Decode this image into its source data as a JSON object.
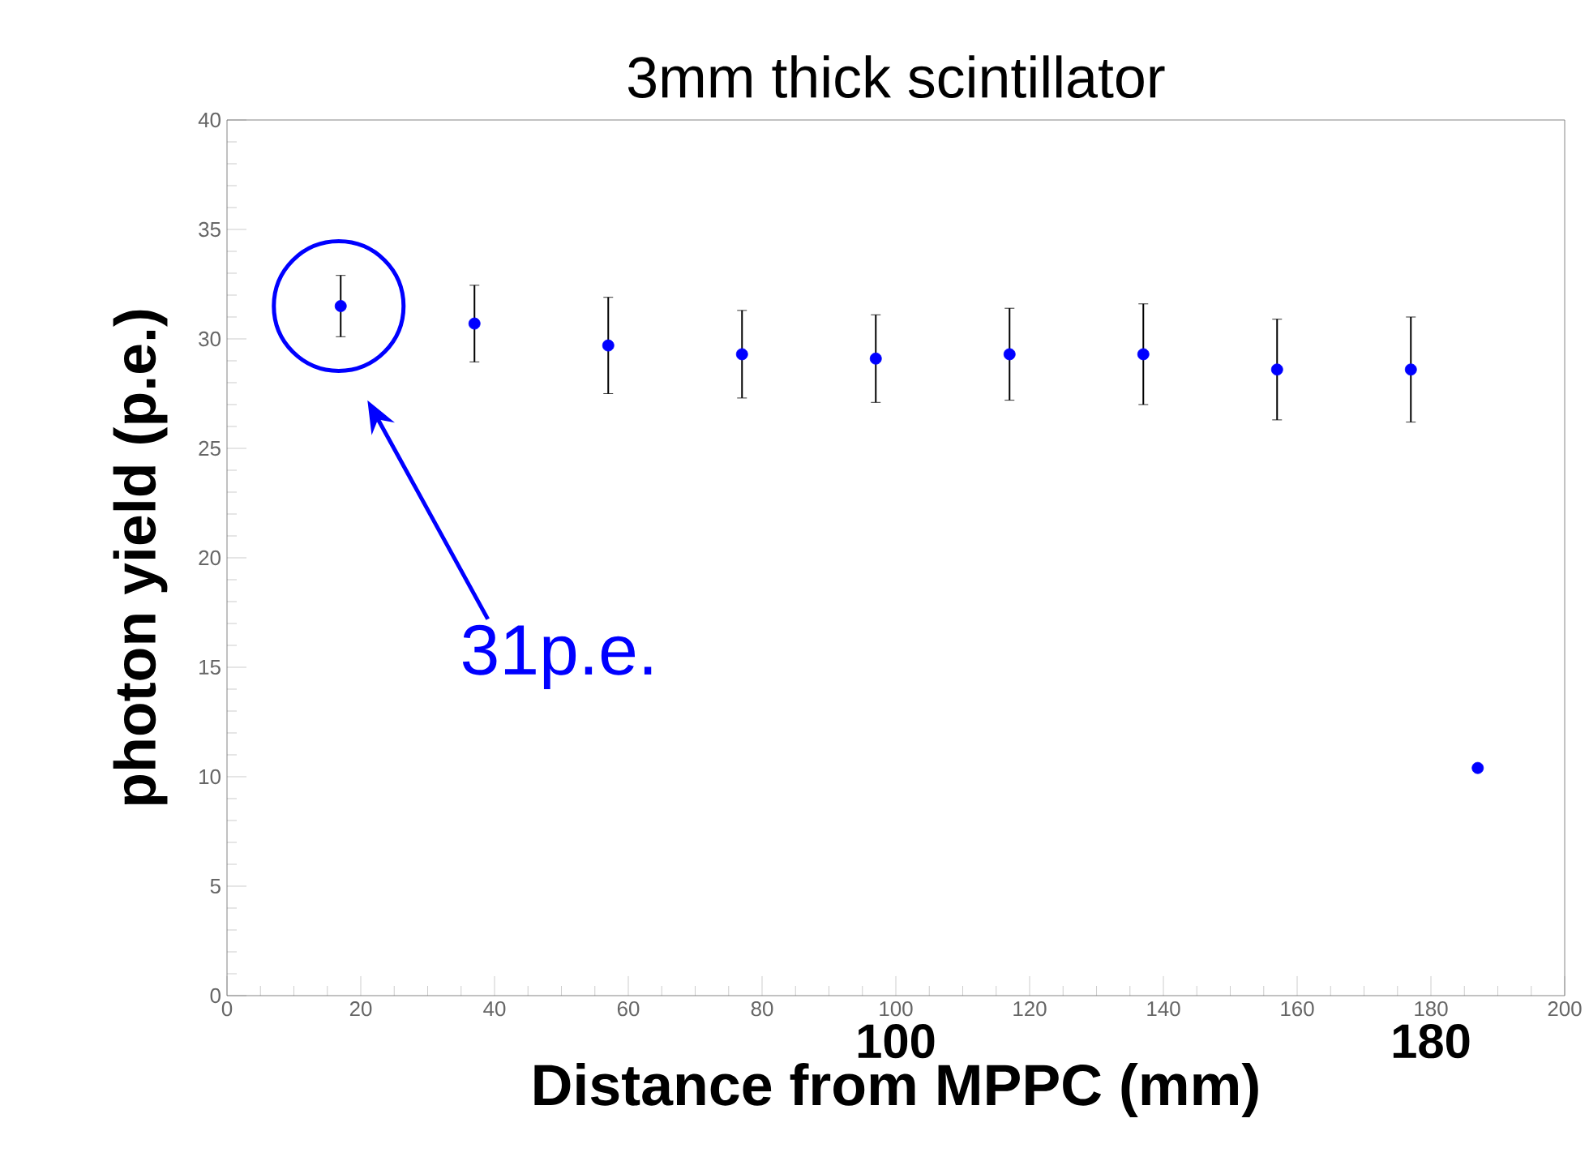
{
  "chart_data": {
    "type": "scatter",
    "title": "3mm thick scintillator",
    "xlabel": "Distance from MPPC  (mm)",
    "ylabel": "photon yield   (p.e.)",
    "x": [
      17,
      37,
      57,
      77,
      97,
      117,
      137,
      157,
      177,
      187
    ],
    "series": [
      {
        "color": "#0000ff",
        "values": [
          31.5,
          30.7,
          29.7,
          29.3,
          29.1,
          29.3,
          29.3,
          28.6,
          28.6,
          10.4
        ],
        "errors": [
          1.4,
          1.75,
          2.2,
          2.0,
          2.0,
          2.1,
          2.3,
          2.3,
          2.4,
          null
        ]
      }
    ],
    "marker": "circle",
    "xlim": [
      0,
      200
    ],
    "ylim": [
      0,
      40
    ],
    "xticks": [
      0,
      20,
      40,
      60,
      80,
      100,
      120,
      140,
      160,
      180,
      200
    ],
    "yticks": [
      0,
      5,
      10,
      15,
      20,
      25,
      30,
      35,
      40
    ],
    "grid": false,
    "annotations": [
      "31p.e.",
      "100",
      "180"
    ]
  }
}
